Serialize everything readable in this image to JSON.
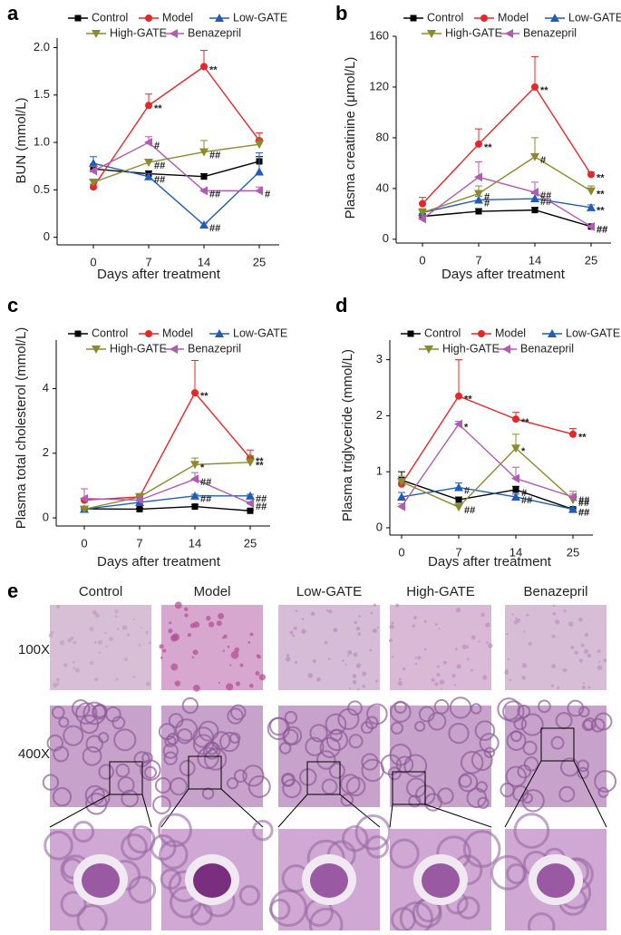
{
  "chart_data": [
    {
      "type": "line",
      "panel_label": "a",
      "y_label": "BUN (mmol/L)",
      "x_label": "Days after treatment",
      "categories": [
        "0",
        "7",
        "14",
        "25"
      ],
      "ylim": [
        -0.08,
        2.1
      ],
      "yticks": [
        0,
        0.5,
        {
          "value": 1,
          "label": "1.0"
        },
        1.5,
        {
          "value": 2,
          "label": "2.0"
        }
      ],
      "series": [
        {
          "name": "Control",
          "color": "#000000",
          "marker": "square",
          "values": [
            0.72,
            0.67,
            0.64,
            0.8
          ],
          "errors": [
            0.05,
            0.03,
            0.03,
            0.05
          ],
          "annotations": [
            null,
            null,
            null,
            null
          ]
        },
        {
          "name": "Model",
          "color": "#e8262a",
          "marker": "circle",
          "values": [
            0.53,
            1.39,
            1.8,
            1.02
          ],
          "errors": [
            0.03,
            0.12,
            0.17,
            0.08
          ],
          "annotations": [
            null,
            "**",
            "**",
            null
          ]
        },
        {
          "name": "Low-GATE",
          "color": "#1f5eb8",
          "marker": "triangle-up",
          "values": [
            0.78,
            0.64,
            0.13,
            0.69
          ],
          "errors": [
            0.07,
            0.03,
            0.02,
            0.2
          ],
          "annotations": [
            null,
            "##",
            "##",
            null
          ]
        },
        {
          "name": "High-GATE",
          "color": "#8b8b2e",
          "marker": "triangle-down",
          "values": [
            0.58,
            0.79,
            0.9,
            0.98
          ],
          "errors": [
            0.03,
            0.03,
            0.12,
            0.06
          ],
          "annotations": [
            null,
            "##",
            "##",
            null
          ]
        },
        {
          "name": "Benazepril",
          "color": "#b15bb3",
          "marker": "triangle-left",
          "values": [
            0.7,
            1.0,
            0.49,
            0.49
          ],
          "errors": [
            0.05,
            0.06,
            0.02,
            0.04
          ],
          "annotations": [
            null,
            "#",
            "##",
            "#"
          ]
        }
      ]
    },
    {
      "type": "line",
      "panel_label": "b",
      "y_label": "Plasma creatinine (μmol/L)",
      "x_label": "Days after treatment",
      "categories": [
        "0",
        "7",
        "14",
        "25"
      ],
      "ylim": [
        -3,
        160
      ],
      "yticks": [
        0,
        40,
        80,
        120,
        160
      ],
      "series": [
        {
          "name": "Control",
          "color": "#000000",
          "marker": "square",
          "values": [
            18,
            22,
            23,
            10
          ],
          "errors": [
            2,
            2,
            2,
            1
          ],
          "annotations": [
            null,
            null,
            null,
            "##"
          ]
        },
        {
          "name": "Model",
          "color": "#e8262a",
          "marker": "circle",
          "values": [
            28,
            75,
            120,
            51
          ],
          "errors": [
            5,
            12,
            24,
            2
          ],
          "annotations": [
            null,
            "**",
            "**",
            "**"
          ]
        },
        {
          "name": "Low-GATE",
          "color": "#1f5eb8",
          "marker": "triangle-up",
          "values": [
            21,
            31,
            32,
            25
          ],
          "errors": [
            3,
            3,
            4,
            2
          ],
          "annotations": [
            null,
            "#",
            "##",
            "**"
          ]
        },
        {
          "name": "High-GATE",
          "color": "#8b8b2e",
          "marker": "triangle-down",
          "values": [
            21,
            36,
            65,
            38
          ],
          "errors": [
            3,
            6,
            15,
            4
          ],
          "annotations": [
            null,
            "#",
            "#",
            "**"
          ]
        },
        {
          "name": "Benazepril",
          "color": "#b15bb3",
          "marker": "triangle-left",
          "values": [
            16,
            49,
            37,
            10
          ],
          "errors": [
            2,
            12,
            8,
            1
          ],
          "annotations": [
            null,
            null,
            "##",
            "##"
          ]
        }
      ]
    },
    {
      "type": "line",
      "panel_label": "c",
      "y_label": "Plasma total cholesterol (mmol/L)",
      "x_label": "Days after treatment",
      "categories": [
        "0",
        "7",
        "14",
        "25"
      ],
      "ylim": [
        -0.25,
        5.5
      ],
      "yticks": [
        0,
        2,
        4
      ],
      "series": [
        {
          "name": "Control",
          "color": "#000000",
          "marker": "square",
          "values": [
            0.28,
            0.27,
            0.35,
            0.22
          ],
          "errors": [
            0.03,
            0.03,
            0.05,
            0.03
          ],
          "annotations": [
            null,
            null,
            null,
            null
          ]
        },
        {
          "name": "Model",
          "color": "#e8262a",
          "marker": "circle",
          "values": [
            0.55,
            0.65,
            3.87,
            1.85
          ],
          "errors": [
            0.05,
            0.1,
            1.0,
            0.25
          ],
          "annotations": [
            null,
            null,
            "**",
            "**"
          ]
        },
        {
          "name": "Low-GATE",
          "color": "#1f5eb8",
          "marker": "triangle-up",
          "values": [
            0.27,
            0.48,
            0.68,
            0.68
          ],
          "errors": [
            0.03,
            0.05,
            0.05,
            0.05
          ],
          "annotations": [
            null,
            null,
            "##",
            "##"
          ]
        },
        {
          "name": "High-GATE",
          "color": "#8b8b2e",
          "marker": "triangle-down",
          "values": [
            0.27,
            0.65,
            1.65,
            1.72
          ],
          "errors": [
            0.02,
            0.1,
            0.2,
            0.2
          ],
          "annotations": [
            null,
            null,
            "*",
            "**"
          ]
        },
        {
          "name": "Benazepril",
          "color": "#b15bb3",
          "marker": "triangle-left",
          "values": [
            0.6,
            0.55,
            1.2,
            0.45
          ],
          "errors": [
            0.3,
            0.1,
            0.2,
            0.05
          ],
          "annotations": [
            null,
            null,
            "##",
            "##"
          ]
        }
      ]
    },
    {
      "type": "line",
      "panel_label": "d",
      "y_label": "Plasma triglyceride (mmol/L)",
      "x_label": "Days after treatment",
      "categories": [
        "0",
        "7",
        "14",
        "25"
      ],
      "ylim": [
        -0.13,
        3.35
      ],
      "yticks": [
        0,
        1,
        2,
        3
      ],
      "series": [
        {
          "name": "Control",
          "color": "#000000",
          "marker": "square",
          "values": [
            0.85,
            0.5,
            0.68,
            0.33
          ],
          "errors": [
            0.15,
            0.05,
            0.06,
            0.03
          ],
          "annotations": [
            null,
            null,
            "#",
            "##"
          ]
        },
        {
          "name": "Model",
          "color": "#e8262a",
          "marker": "circle",
          "values": [
            0.78,
            2.35,
            1.94,
            1.67
          ],
          "errors": [
            0.1,
            0.65,
            0.12,
            0.1
          ],
          "annotations": [
            null,
            "**",
            "**",
            "**"
          ]
        },
        {
          "name": "Low-GATE",
          "color": "#1f5eb8",
          "marker": "triangle-up",
          "values": [
            0.55,
            0.72,
            0.55,
            0.33
          ],
          "errors": [
            0.08,
            0.08,
            0.05,
            0.03
          ],
          "annotations": [
            null,
            "#",
            "##",
            "##"
          ]
        },
        {
          "name": "High-GATE",
          "color": "#8b8b2e",
          "marker": "triangle-down",
          "values": [
            0.82,
            0.37,
            1.42,
            0.5
          ],
          "errors": [
            0.1,
            0.05,
            0.25,
            0.1
          ],
          "annotations": [
            null,
            "##",
            "*",
            "##"
          ]
        },
        {
          "name": "Benazepril",
          "color": "#b15bb3",
          "marker": "triangle-left",
          "values": [
            0.38,
            1.85,
            0.88,
            0.55
          ],
          "errors": [
            0.05,
            0.05,
            0.2,
            0.1
          ],
          "annotations": [
            null,
            "*",
            null,
            "##"
          ]
        }
      ]
    }
  ],
  "panel_e": {
    "label": "e",
    "columns": [
      "Control",
      "Model",
      "Low-GATE",
      "High-GATE",
      "Benazepril"
    ],
    "rows": [
      "100X",
      "400X"
    ]
  }
}
